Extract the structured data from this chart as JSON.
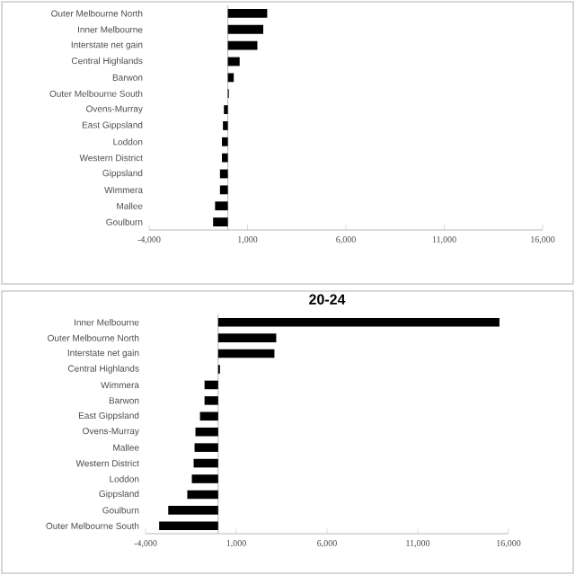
{
  "chart_data": [
    {
      "type": "bar",
      "orientation": "horizontal",
      "categories": [
        "Outer Melbourne North",
        "Inner Melbourne",
        "Interstate net gain",
        "Central Highlands",
        "Barwon",
        "Outer Melbourne South",
        "Ovens-Murray",
        "East Gippsland",
        "Loddon",
        "Western District",
        "Gippsland",
        "Wimmera",
        "Mallee",
        "Goulburn"
      ],
      "values": [
        2000,
        1800,
        1500,
        600,
        300,
        50,
        -200,
        -250,
        -300,
        -300,
        -400,
        -400,
        -650,
        -750
      ],
      "color": "#000000",
      "xlim": [
        -4000,
        16000
      ],
      "xticks": [
        {
          "value": -4000,
          "label": "-4,000"
        },
        {
          "value": 1000,
          "label": "1,000"
        },
        {
          "value": 6000,
          "label": "6,000"
        },
        {
          "value": 11000,
          "label": "11,000"
        },
        {
          "value": 16000,
          "label": "16,000"
        }
      ]
    },
    {
      "type": "bar",
      "orientation": "horizontal",
      "title": "20-24",
      "categories": [
        "Inner Melbourne",
        "Outer Melbourne North",
        "Interstate net gain",
        "Central Highlands",
        "Wimmera",
        "Barwon",
        "East Gippsland",
        "Ovens-Murray",
        "Mallee",
        "Western District",
        "Loddon",
        "Gippsland",
        "Goulburn",
        "Outer Melbourne South"
      ],
      "values": [
        15500,
        3200,
        3100,
        100,
        -750,
        -750,
        -1000,
        -1250,
        -1300,
        -1350,
        -1450,
        -1700,
        -2750,
        -3250
      ],
      "color": "#000000",
      "xlim": [
        -4000,
        16000
      ],
      "xticks": [
        {
          "value": -4000,
          "label": "-4,000"
        },
        {
          "value": 1000,
          "label": "1,000"
        },
        {
          "value": 6000,
          "label": "6,000"
        },
        {
          "value": 11000,
          "label": "11,000"
        },
        {
          "value": 16000,
          "label": "16,000"
        }
      ]
    }
  ]
}
